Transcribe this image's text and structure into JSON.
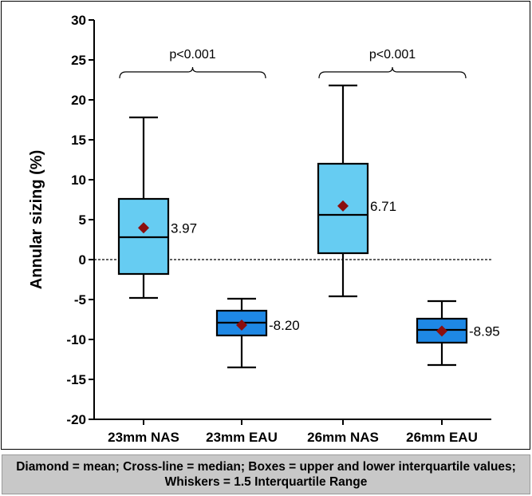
{
  "chart_data": {
    "type": "box",
    "title": "",
    "xlabel": "",
    "ylabel": "Annular sizing (%)",
    "ylim": [
      -20,
      30
    ],
    "yticks": [
      -20,
      -15,
      -10,
      -5,
      0,
      5,
      10,
      15,
      20,
      25,
      30
    ],
    "reference_line": 0,
    "colors": {
      "nas": "#66ccf2",
      "eau": "#1e88e5",
      "mean_marker": "#8b0e0e"
    },
    "categories": [
      "23mm  NAS",
      "23mm  EAU",
      "26mm  NAS",
      "26mm  EAU"
    ],
    "boxes": [
      {
        "category": "23mm  NAS",
        "whisker_low": -4.8,
        "q1": -1.8,
        "median": 2.8,
        "q3": 7.6,
        "whisker_high": 17.8,
        "mean": 3.97,
        "mean_label": "3.97",
        "color_key": "nas"
      },
      {
        "category": "23mm  EAU",
        "whisker_low": -13.5,
        "q1": -9.5,
        "median": -7.9,
        "q3": -6.4,
        "whisker_high": -4.9,
        "mean": -8.2,
        "mean_label": "-8.20",
        "color_key": "eau"
      },
      {
        "category": "26mm  NAS",
        "whisker_low": -4.6,
        "q1": 0.8,
        "median": 5.6,
        "q3": 12.0,
        "whisker_high": 21.8,
        "mean": 6.71,
        "mean_label": "6.71",
        "color_key": "nas"
      },
      {
        "category": "26mm  EAU",
        "whisker_low": -13.2,
        "q1": -10.4,
        "median": -8.8,
        "q3": -7.4,
        "whisker_high": -5.2,
        "mean": -8.95,
        "mean_label": "-8.95",
        "color_key": "eau"
      }
    ],
    "comparisons": [
      {
        "from": 0,
        "to": 1,
        "label": "p<0.001"
      },
      {
        "from": 2,
        "to": 3,
        "label": "p<0.001"
      }
    ]
  },
  "caption": "Diamond = mean; Cross-line = median; Boxes = upper and lower interquartile values; Whiskers = 1.5 Interquartile Range"
}
